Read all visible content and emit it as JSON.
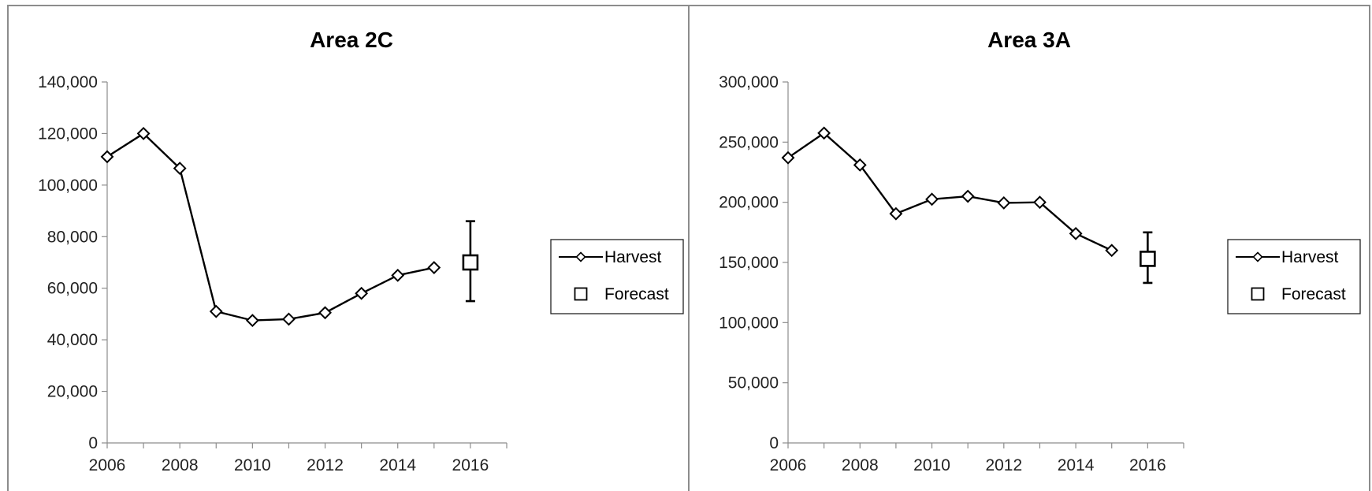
{
  "chart_data": [
    {
      "type": "line",
      "title": "Area 2C",
      "xlabel": "",
      "ylabel": "",
      "xlim": [
        2006,
        2017
      ],
      "ylim": [
        0,
        140000
      ],
      "x_ticks": [
        2006,
        2008,
        2010,
        2012,
        2014,
        2016
      ],
      "x_tick_labels": [
        "2006",
        "2008",
        "2010",
        "2012",
        "2014",
        "2016"
      ],
      "y_ticks": [
        0,
        20000,
        40000,
        60000,
        80000,
        100000,
        120000,
        140000
      ],
      "y_tick_labels": [
        "0",
        "20,000",
        "40,000",
        "60,000",
        "80,000",
        "100,000",
        "120,000",
        "140,000"
      ],
      "grid": false,
      "legend_position": "right",
      "series": [
        {
          "name": "Harvest",
          "marker": "diamond",
          "x": [
            2006,
            2007,
            2008,
            2009,
            2010,
            2011,
            2012,
            2013,
            2014,
            2015
          ],
          "y": [
            111000,
            120000,
            106500,
            51000,
            47500,
            48000,
            50500,
            58000,
            65000,
            68000
          ]
        },
        {
          "name": "Forecast",
          "marker": "square",
          "x": [
            2016
          ],
          "y": [
            70000
          ],
          "y_low": [
            55000
          ],
          "y_high": [
            86000
          ]
        }
      ]
    },
    {
      "type": "line",
      "title": "Area 3A",
      "xlabel": "",
      "ylabel": "",
      "xlim": [
        2006,
        2017
      ],
      "ylim": [
        0,
        300000
      ],
      "x_ticks": [
        2006,
        2008,
        2010,
        2012,
        2014,
        2016
      ],
      "x_tick_labels": [
        "2006",
        "2008",
        "2010",
        "2012",
        "2014",
        "2016"
      ],
      "y_ticks": [
        0,
        50000,
        100000,
        150000,
        200000,
        250000,
        300000
      ],
      "y_tick_labels": [
        "0",
        "50,000",
        "100,000",
        "150,000",
        "200,000",
        "250,000",
        "300,000"
      ],
      "grid": false,
      "legend_position": "right",
      "series": [
        {
          "name": "Harvest",
          "marker": "diamond",
          "x": [
            2006,
            2007,
            2008,
            2009,
            2010,
            2011,
            2012,
            2013,
            2014,
            2015
          ],
          "y": [
            237000,
            257500,
            231000,
            190500,
            202500,
            205000,
            199500,
            200000,
            174000,
            160000
          ]
        },
        {
          "name": "Forecast",
          "marker": "square",
          "x": [
            2016
          ],
          "y": [
            153000
          ],
          "y_low": [
            133000
          ],
          "y_high": [
            175000
          ]
        }
      ]
    }
  ]
}
